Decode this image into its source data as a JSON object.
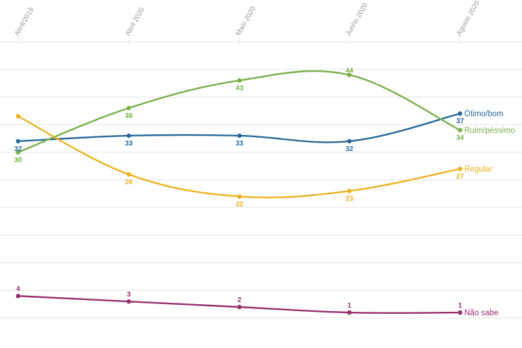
{
  "chart_data": {
    "type": "line",
    "categories": [
      "Abril/2019",
      "Abril 2020",
      "Maio 2020",
      "Junho 2020",
      "Agosto 2020"
    ],
    "series": [
      {
        "name": "Ótimo/bom",
        "values": [
          32,
          33,
          33,
          32,
          37
        ],
        "color": "#2a6a9a"
      },
      {
        "name": "Ruim/péssimo",
        "values": [
          30,
          38,
          43,
          44,
          34
        ],
        "color": "#79b04a"
      },
      {
        "name": "Regular",
        "values": [
          null,
          26,
          22,
          23,
          27
        ],
        "color": "#eeb221"
      },
      {
        "name": "Não sabe",
        "values": [
          4,
          3,
          2,
          1,
          1
        ],
        "color": "#96306e"
      }
    ],
    "ylim": [
      0,
      50
    ],
    "grid": true,
    "legend": "end-of-line labels"
  }
}
